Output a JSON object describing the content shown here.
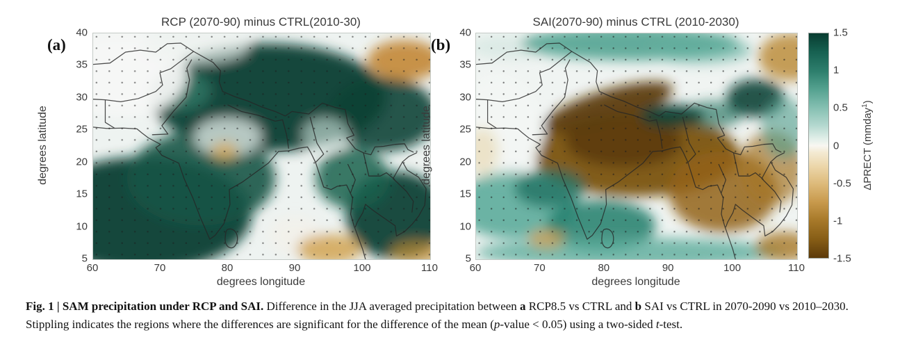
{
  "figure": {
    "panels": [
      {
        "label": "(a)",
        "title": "RCP (2070-90) minus CTRL(2010-30)",
        "xlabel": "degrees longitude",
        "ylabel": "degrees latitude",
        "xticks": [
          "60",
          "70",
          "80",
          "90",
          "100",
          "110"
        ],
        "yticks": [
          "40",
          "35",
          "30",
          "25",
          "20",
          "15",
          "10",
          "5"
        ]
      },
      {
        "label": "(b)",
        "title": "SAI(2070-90) minus CTRL (2010-2030)",
        "xlabel": "degrees longitude",
        "ylabel": "degrees latitude",
        "xticks": [
          "60",
          "70",
          "80",
          "90",
          "100",
          "110"
        ],
        "yticks": [
          "40",
          "35",
          "30",
          "25",
          "20",
          "15",
          "10",
          "5"
        ]
      }
    ],
    "colorbar": {
      "ticks": [
        "1.5",
        "1",
        "0.5",
        "0",
        "-0.5",
        "-1",
        "-1.5"
      ],
      "label_prefix": "ΔPRECT (mmday",
      "label_sup": "1",
      "label_suffix": ")",
      "positive_color": "#0b4236",
      "zero_color": "#f8f7f2",
      "negative_color": "#5c3a0a"
    }
  },
  "caption": {
    "line1": [
      {
        "t": "Fig. 1 | SAM precipitation under RCP and SAI.",
        "b": true
      },
      {
        "t": " Difference in the JJA averaged precipitation between "
      },
      {
        "t": "a",
        "b": true
      },
      {
        "t": " RCP8.5 vs CTRL and "
      },
      {
        "t": "b",
        "b": true
      },
      {
        "t": " SAI vs CTRL in 2070-2090 vs 2010–2030."
      }
    ],
    "line2": [
      {
        "t": "Stippling indicates the regions where the differences are significant for the difference of the mean ("
      },
      {
        "t": "p",
        "i": true
      },
      {
        "t": "-value < 0.05) using a two-sided "
      },
      {
        "t": "t",
        "i": true
      },
      {
        "t": "-test."
      }
    ]
  },
  "chart_data": [
    {
      "type": "heatmap",
      "panel": "a",
      "title": "RCP (2070-90) minus CTRL(2010-30)",
      "xlabel": "degrees longitude",
      "ylabel": "degrees latitude",
      "xlim": [
        60,
        110
      ],
      "ylim": [
        5,
        40
      ],
      "colorbar_label": "ΔPRECT (mmday¹)",
      "colorbar_range": [
        -1.5,
        1.5
      ],
      "palette": "brown (negative) to white (0) to dark teal (positive)",
      "stippling": "dots mark p-value < 0.05 significance, present over most of the domain",
      "features": [
        {
          "region": "Tibetan Plateau / Himalaya, 75-100E 25-35N",
          "value": 1.5
        },
        {
          "region": "India and Arabian Sea, 60-80E 5-22N",
          "value": 1.5
        },
        {
          "region": "Southeast Asia / Indochina, 95-110E 5-20N",
          "value": 1.2
        },
        {
          "region": "Afghanistan / northwest corner, 60-70E 28-40N",
          "value": 0.0
        },
        {
          "region": "northeast corner, 103-110E 33-40N",
          "value": -0.6
        },
        {
          "region": "small spot near 79E 22N",
          "value": -0.3
        },
        {
          "region": "spots near 95E 6N and 108E 6N",
          "value": -0.5
        }
      ]
    },
    {
      "type": "heatmap",
      "panel": "b",
      "title": "SAI(2070-90) minus CTRL (2010-2030)",
      "xlabel": "degrees longitude",
      "ylabel": "degrees latitude",
      "xlim": [
        60,
        110
      ],
      "ylim": [
        5,
        40
      ],
      "colorbar_label": "ΔPRECT (mmday¹)",
      "colorbar_range": [
        -1.5,
        1.5
      ],
      "palette": "brown (negative) to white (0) to dark teal (positive)",
      "stippling": "dots mark p-value < 0.05 significance, present over most of the domain",
      "features": [
        {
          "region": "Himalayan arc, 75-85E 27-31N",
          "value": -1.5
        },
        {
          "region": "central/northern India and Indo-Gangetic plain, 75-95E 15-27N",
          "value": -1.2
        },
        {
          "region": "Indochina, 95-110E 10-25N",
          "value": -0.7
        },
        {
          "region": "band along 35-40N, 75-95E",
          "value": 0.6
        },
        {
          "region": "Bhutan/Assam patch, 88-93E 26-29N",
          "value": 1.3
        },
        {
          "region": "patch near 101-106E 27-33N",
          "value": 1.4
        },
        {
          "region": "Arabian Sea band, 60-75E 10-18N",
          "value": 0.7
        },
        {
          "region": "southern India, 75-85E 8-13N",
          "value": 0.9
        },
        {
          "region": "band along 5-8N",
          "value": 0.6
        },
        {
          "region": "northeast corner, 105-110E 35-40N",
          "value": -0.6
        },
        {
          "region": "spot near 71E 8N and southeast corner",
          "value": -0.5
        }
      ]
    }
  ]
}
